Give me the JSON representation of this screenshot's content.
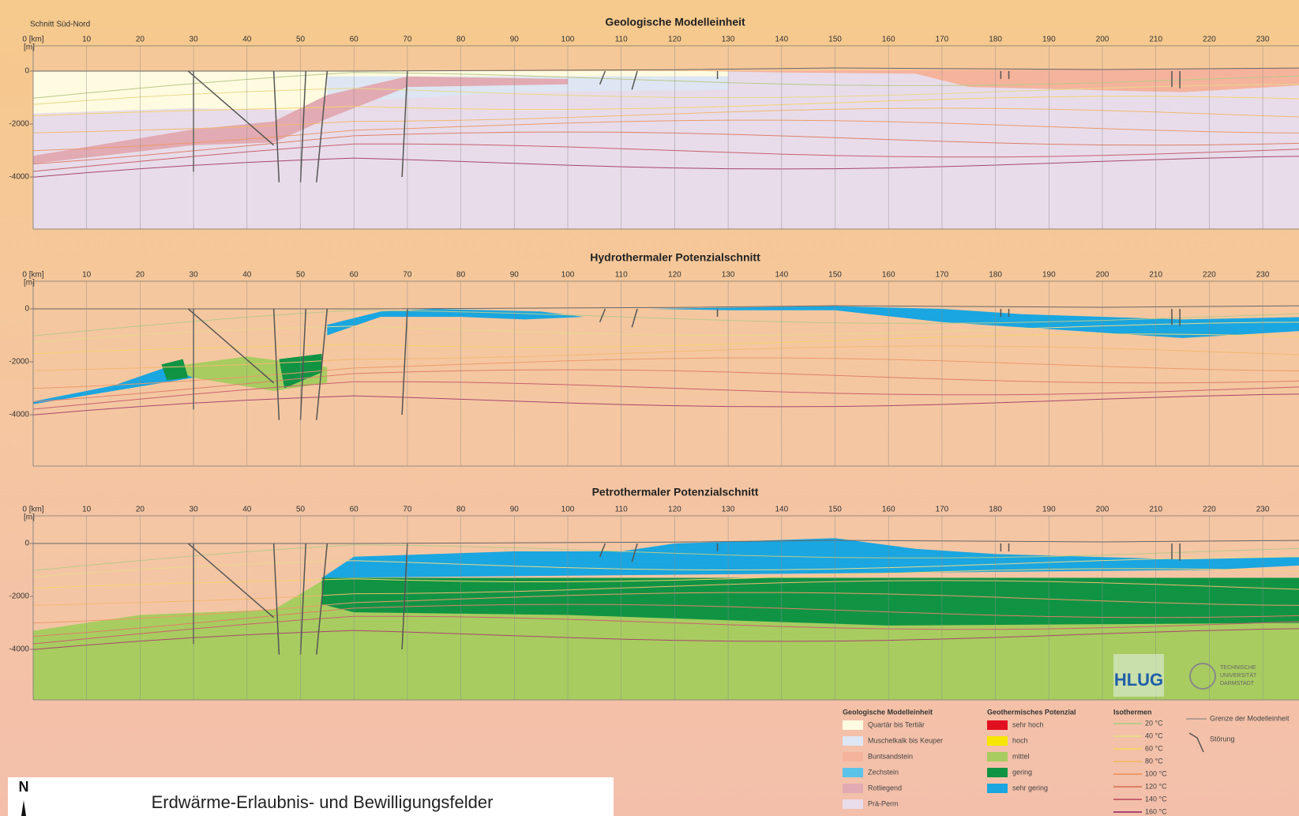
{
  "header": {
    "section_label": "Schnitt Süd-Nord",
    "y_unit": "[m]"
  },
  "xticks": [
    {
      "value": 0,
      "label": "0 [km]"
    },
    10,
    20,
    30,
    40,
    50,
    60,
    70,
    80,
    90,
    100,
    110,
    120,
    130,
    140,
    150,
    160,
    170,
    180,
    190,
    200,
    210,
    220,
    230
  ],
  "yticks": [
    0,
    -2000,
    -4000
  ],
  "panels": [
    {
      "title": "Geologische Modelleinheit"
    },
    {
      "title": "Hydrothermaler Potenzialschnitt"
    },
    {
      "title": "Petrothermaler Potenzialschnitt"
    }
  ],
  "legend": {
    "geology": {
      "title": "Geologische Modelleinheit",
      "items": [
        {
          "label": "Quartär bis Tertiär",
          "color": "#fffbe0"
        },
        {
          "label": "Muschelkalk bis Keuper",
          "color": "#dde6f2"
        },
        {
          "label": "Buntsandstein",
          "color": "#f5b39c"
        },
        {
          "label": "Zechstein",
          "color": "#5bc3e8"
        },
        {
          "label": "Rotliegend",
          "color": "#e2aab2"
        },
        {
          "label": "Prä-Perm",
          "color": "#e8dcea"
        }
      ]
    },
    "potential": {
      "title": "Geothermisches Potenzial",
      "items": [
        {
          "label": "sehr hoch",
          "color": "#e01020"
        },
        {
          "label": "hoch",
          "color": "#f7e600"
        },
        {
          "label": "mittel",
          "color": "#a8cc60"
        },
        {
          "label": "gering",
          "color": "#109444"
        },
        {
          "label": "sehr gering",
          "color": "#1aa6e0"
        }
      ]
    },
    "isotherms": {
      "title": "Isothermen",
      "items": [
        {
          "label": "20 °C",
          "color": "#b9c98a"
        },
        {
          "label": "40 °C",
          "color": "#e8d98a"
        },
        {
          "label": "60 °C",
          "color": "#f4d36e"
        },
        {
          "label": "80 °C",
          "color": "#f2b870"
        },
        {
          "label": "100 °C",
          "color": "#ec9a6a"
        },
        {
          "label": "120 °C",
          "color": "#df7f6a"
        },
        {
          "label": "140 °C",
          "color": "#c9606e"
        },
        {
          "label": "160 °C",
          "color": "#a8466e"
        }
      ]
    },
    "other": [
      "Grenze der Modelleinheit",
      "Störung"
    ]
  },
  "logos": {
    "hlug": "HLUG",
    "tu": [
      "TECHNISCHE",
      "UNIVERSITÄT",
      "DARMSTADT"
    ]
  },
  "inset": {
    "north": "N",
    "title": "Erdwärme-Erlaubnis- und Bewilligungsfelder"
  }
}
